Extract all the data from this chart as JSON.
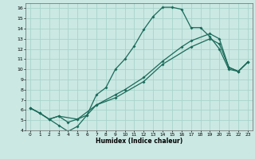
{
  "xlabel": "Humidex (Indice chaleur)",
  "bg_color": "#cbe8e3",
  "grid_color": "#a8d4cc",
  "line_color": "#1a6b5a",
  "xlim": [
    -0.5,
    23.5
  ],
  "ylim": [
    4,
    16.5
  ],
  "xticks": [
    0,
    1,
    2,
    3,
    4,
    5,
    6,
    7,
    8,
    9,
    10,
    11,
    12,
    13,
    14,
    15,
    16,
    17,
    18,
    19,
    20,
    21,
    22,
    23
  ],
  "yticks": [
    4,
    5,
    6,
    7,
    8,
    9,
    10,
    11,
    12,
    13,
    14,
    15,
    16
  ],
  "series": [
    {
      "x": [
        0,
        1,
        2,
        3,
        4,
        5,
        6,
        7,
        8,
        9,
        10,
        11,
        12,
        13,
        14,
        15,
        16,
        17,
        18,
        19,
        20,
        21,
        22,
        23
      ],
      "y": [
        6.2,
        5.7,
        5.1,
        4.5,
        3.9,
        4.4,
        5.5,
        7.5,
        8.2,
        10.0,
        11.0,
        12.3,
        13.9,
        15.2,
        16.1,
        16.1,
        15.9,
        14.1,
        14.1,
        13.2,
        12.0,
        10.0,
        9.8,
        10.7
      ]
    },
    {
      "x": [
        0,
        1,
        2,
        3,
        4,
        5,
        6,
        7,
        9,
        10,
        12,
        14,
        16,
        17,
        19,
        20,
        21,
        22,
        23
      ],
      "y": [
        6.2,
        5.7,
        5.1,
        5.4,
        4.8,
        5.1,
        5.5,
        6.5,
        7.5,
        8.0,
        9.2,
        10.8,
        12.2,
        12.8,
        13.5,
        13.0,
        10.2,
        9.8,
        10.7
      ]
    },
    {
      "x": [
        0,
        1,
        2,
        3,
        5,
        7,
        9,
        12,
        14,
        17,
        19,
        20,
        21,
        22,
        23
      ],
      "y": [
        6.2,
        5.7,
        5.1,
        5.4,
        5.1,
        6.5,
        7.2,
        8.8,
        10.5,
        12.2,
        13.0,
        12.5,
        10.2,
        9.8,
        10.7
      ]
    }
  ]
}
